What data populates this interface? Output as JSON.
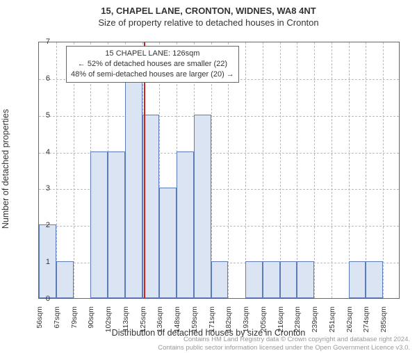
{
  "title": "15, CHAPEL LANE, CRONTON, WIDNES, WA8 4NT",
  "subtitle": "Size of property relative to detached houses in Cronton",
  "ylabel": "Number of detached properties",
  "xlabel": "Distribution of detached houses by size in Cronton",
  "chart": {
    "type": "histogram",
    "ylim": [
      0,
      7
    ],
    "yticks": [
      0,
      1,
      2,
      3,
      4,
      5,
      6,
      7
    ],
    "xticks": [
      "56sqm",
      "67sqm",
      "79sqm",
      "90sqm",
      "102sqm",
      "113sqm",
      "125sqm",
      "136sqm",
      "148sqm",
      "159sqm",
      "171sqm",
      "182sqm",
      "193sqm",
      "205sqm",
      "216sqm",
      "228sqm",
      "239sqm",
      "251sqm",
      "262sqm",
      "274sqm",
      "285sqm"
    ],
    "bar_values": [
      2,
      1,
      0,
      4,
      4,
      6,
      5,
      3,
      4,
      5,
      1,
      0,
      1,
      1,
      1,
      1,
      0,
      0,
      1,
      1,
      0
    ],
    "bar_fill": "#dbe4f2",
    "bar_stroke": "#5b7cb8",
    "background_color": "#ffffff",
    "grid_color": "#bbbbbb",
    "axis_color": "#666666",
    "refline_color": "#d62020",
    "refline_index": 6.1,
    "bar_count": 21,
    "label_fontsize": 12.5,
    "tick_fontsize": 11
  },
  "annotation": {
    "line1": "15 CHAPEL LANE: 126sqm",
    "line2": "← 52% of detached houses are smaller (22)",
    "line3": "48% of semi-detached houses are larger (20) →"
  },
  "footer": {
    "line1": "Contains HM Land Registry data © Crown copyright and database right 2024.",
    "line2": "Contains public sector information licensed under the Open Government Licence v3.0."
  }
}
